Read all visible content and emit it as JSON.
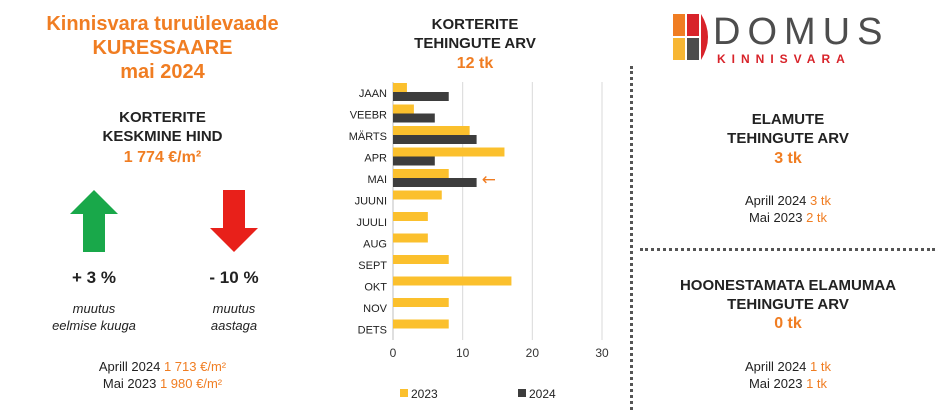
{
  "header": {
    "line1": "Kinnisvara turuülevaade",
    "line2": "KURESSAARE",
    "line3": "mai 2024"
  },
  "apartments_price": {
    "heading1": "KORTERITE",
    "heading2": "KESKMINE HIND",
    "value": "1 774 €/m²",
    "change_month": {
      "value": "+ 3 %",
      "label1": "muutus",
      "label2": "eelmise kuuga",
      "direction": "up",
      "color": "#19a84a"
    },
    "change_year": {
      "value": "- 10 %",
      "label1": "muutus",
      "label2": "aastaga",
      "direction": "down",
      "color": "#e8201a"
    },
    "compare": [
      {
        "label": "Aprill 2024",
        "value": "1 713 €/m²"
      },
      {
        "label": "Mai 2023",
        "value": "1 980 €/m²"
      }
    ]
  },
  "chart_header": {
    "line1": "KORTERITE",
    "line2": "TEHINGUTE ARV",
    "value": "12 tk"
  },
  "chart_data": {
    "type": "bar",
    "orientation": "horizontal",
    "categories": [
      "JAAN",
      "VEEBR",
      "MÄRTS",
      "APR",
      "MAI",
      "JUUNI",
      "JUULI",
      "AUG",
      "SEPT",
      "OKT",
      "NOV",
      "DETS"
    ],
    "series": [
      {
        "name": "2023",
        "color": "#fbc02d",
        "values": [
          2,
          3,
          11,
          16,
          8,
          7,
          5,
          5,
          8,
          17,
          8,
          8
        ]
      },
      {
        "name": "2024",
        "color": "#3d3d3d",
        "values": [
          8,
          6,
          12,
          6,
          12,
          null,
          null,
          null,
          null,
          null,
          null,
          null
        ]
      }
    ],
    "xlim": [
      0,
      30
    ],
    "xticks": [
      "0",
      "10",
      "20",
      "30"
    ],
    "grid": true,
    "legend_position": "bottom",
    "annotation": {
      "category": "MAI",
      "symbol": "←",
      "color": "#f07d22"
    }
  },
  "logo": {
    "name": "DOMUS",
    "sub": "KINNISVARA",
    "colors": [
      "#f07d22",
      "#d8232a",
      "#f7b633",
      "#4d4d4d"
    ]
  },
  "houses": {
    "heading1": "ELAMUTE",
    "heading2": "TEHINGUTE ARV",
    "value": "3 tk",
    "compare": [
      {
        "label": "Aprill 2024",
        "value": "3 tk"
      },
      {
        "label": "Mai 2023",
        "value": "2 tk"
      }
    ]
  },
  "land": {
    "heading1": "HOONESTAMATA ELAMUMAA",
    "heading2": "TEHINGUTE ARV",
    "value": "0 tk",
    "compare": [
      {
        "label": "Aprill 2024",
        "value": "1 tk"
      },
      {
        "label": "Mai 2023",
        "value": "1 tk"
      }
    ]
  }
}
